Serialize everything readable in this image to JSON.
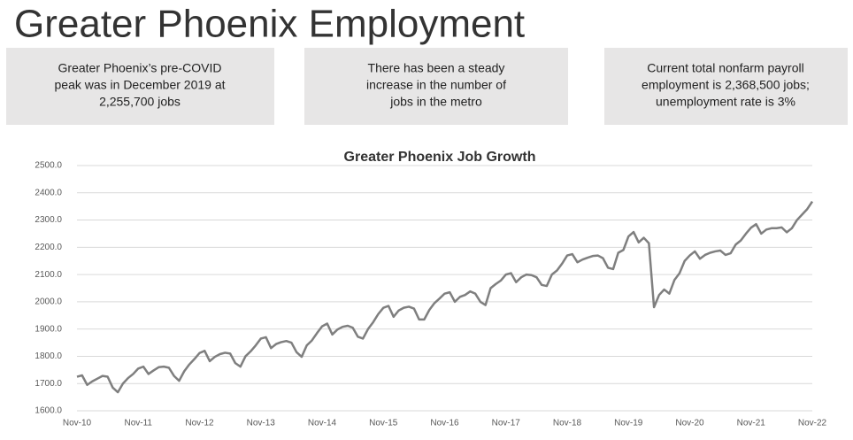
{
  "header": {
    "title": "Greater Phoenix Employment",
    "boxes": [
      [
        "Greater Phoenix’s pre-COVID",
        "peak was in December 2019 at",
        "2,255,700 jobs"
      ],
      [
        "There has been a steady",
        "increase in the number of",
        "jobs in the metro"
      ],
      [
        "Current total nonfarm payroll",
        "employment is 2,368,500 jobs;",
        "unemployment rate is 3%"
      ]
    ]
  },
  "chart_data": {
    "type": "line",
    "title": "Greater Phoenix Job Growth",
    "color": "#7f7f7f",
    "grid": true,
    "categories": [
      "Nov-10",
      null,
      null,
      null,
      null,
      null,
      null,
      null,
      null,
      null,
      null,
      null,
      "Nov-11",
      null,
      null,
      null,
      null,
      null,
      null,
      null,
      null,
      null,
      null,
      null,
      "Nov-12",
      null,
      null,
      null,
      null,
      null,
      null,
      null,
      null,
      null,
      null,
      null,
      "Nov-13",
      null,
      null,
      null,
      null,
      null,
      null,
      null,
      null,
      null,
      null,
      null,
      "Nov-14",
      null,
      null,
      null,
      null,
      null,
      null,
      null,
      null,
      null,
      null,
      null,
      "Nov-15",
      null,
      null,
      null,
      null,
      null,
      null,
      null,
      null,
      null,
      null,
      null,
      "Nov-16",
      null,
      null,
      null,
      null,
      null,
      null,
      null,
      null,
      null,
      null,
      null,
      "Nov-17",
      null,
      null,
      null,
      null,
      null,
      null,
      null,
      null,
      null,
      null,
      null,
      "Nov-18",
      null,
      null,
      null,
      null,
      null,
      null,
      null,
      null,
      null,
      null,
      null,
      "Nov-19",
      null,
      null,
      null,
      null,
      null,
      null,
      null,
      null,
      null,
      null,
      null,
      "Nov-20",
      null,
      null,
      null,
      null,
      null,
      null,
      null,
      null,
      null,
      null,
      null,
      "Nov-21",
      null,
      null,
      null,
      null,
      null,
      null,
      null,
      null,
      null,
      null,
      null,
      "Nov-22"
    ],
    "values": [
      1725,
      1730,
      1695,
      1708,
      1718,
      1728,
      1725,
      1685,
      1668,
      1700,
      1720,
      1735,
      1755,
      1762,
      1735,
      1748,
      1760,
      1762,
      1758,
      1728,
      1710,
      1745,
      1770,
      1790,
      1812,
      1820,
      1782,
      1798,
      1808,
      1813,
      1810,
      1775,
      1762,
      1800,
      1818,
      1840,
      1865,
      1870,
      1830,
      1845,
      1852,
      1856,
      1850,
      1815,
      1798,
      1840,
      1858,
      1885,
      1910,
      1920,
      1880,
      1898,
      1908,
      1912,
      1905,
      1872,
      1865,
      1900,
      1925,
      1955,
      1978,
      1985,
      1945,
      1968,
      1978,
      1982,
      1975,
      1935,
      1935,
      1970,
      1995,
      2012,
      2030,
      2035,
      2000,
      2018,
      2025,
      2038,
      2030,
      2000,
      1988,
      2050,
      2065,
      2078,
      2100,
      2105,
      2072,
      2090,
      2100,
      2098,
      2090,
      2062,
      2058,
      2100,
      2115,
      2140,
      2170,
      2175,
      2145,
      2155,
      2162,
      2168,
      2170,
      2160,
      2125,
      2120,
      2180,
      2190,
      2240,
      2256,
      2218,
      2235,
      2215,
      1980,
      2025,
      2045,
      2030,
      2080,
      2105,
      2150,
      2170,
      2185,
      2158,
      2172,
      2180,
      2185,
      2188,
      2172,
      2178,
      2210,
      2225,
      2250,
      2272,
      2285,
      2250,
      2265,
      2270,
      2270,
      2273,
      2255,
      2270,
      2300,
      2320,
      2340,
      2368
    ],
    "ylim": [
      1600,
      2500
    ],
    "yticks": [
      {
        "value": 1600,
        "label": "1600.0"
      },
      {
        "value": 1700,
        "label": "1700.0"
      },
      {
        "value": 1800,
        "label": "1800.0"
      },
      {
        "value": 1900,
        "label": "1900.0"
      },
      {
        "value": 2000,
        "label": "2000.0"
      },
      {
        "value": 2100,
        "label": "2100.0"
      },
      {
        "value": 2200,
        "label": "2200.0"
      },
      {
        "value": 2300,
        "label": "2300.0"
      },
      {
        "value": 2400,
        "label": "2400.0"
      },
      {
        "value": 2500,
        "label": "2500.0"
      }
    ]
  }
}
